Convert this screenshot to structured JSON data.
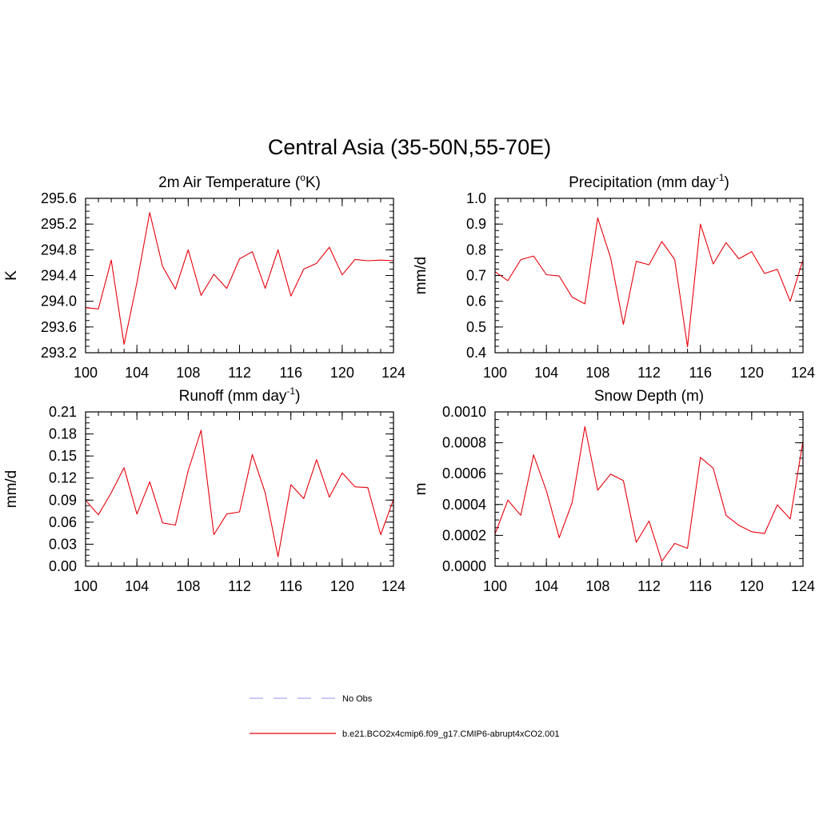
{
  "figure_title": "Central Asia (35-50N,55-70E)",
  "colors": {
    "model": "#e8000b",
    "obs": "#a9a9f0",
    "axis": "#000000"
  },
  "legend": {
    "obs_label": "No Obs",
    "model_label": "b.e21.BCO2x4cmip6.f09_g17.CMIP6-abrupt4xCO2.001"
  },
  "chart_data": [
    {
      "type": "line",
      "title": "2m Air Temperature (",
      "title_sup": "o",
      "title_after": "K)",
      "ylabel": "K",
      "xlim": [
        100,
        124
      ],
      "ylim": [
        293.2,
        295.6
      ],
      "xticks": [
        100,
        104,
        108,
        112,
        116,
        120,
        124
      ],
      "xtick_labels": [
        "100",
        "104",
        "108",
        "112",
        "116",
        "120",
        "124"
      ],
      "yticks": [
        293.2,
        293.6,
        294.0,
        294.4,
        294.8,
        295.2,
        295.6
      ],
      "ytick_labels": [
        "293.2",
        "293.6",
        "294.0",
        "294.4",
        "294.8",
        "295.2",
        "295.6"
      ],
      "x": [
        100,
        101,
        102,
        103,
        104,
        105,
        106,
        107,
        108,
        109,
        110,
        111,
        112,
        113,
        114,
        115,
        116,
        117,
        118,
        119,
        120,
        121,
        122,
        123,
        124
      ],
      "series": [
        {
          "values": [
            293.9,
            293.88,
            294.64,
            293.33,
            294.29,
            295.38,
            294.54,
            294.19,
            294.8,
            294.09,
            294.42,
            294.2,
            294.66,
            294.77,
            294.2,
            294.8,
            294.08,
            294.5,
            294.59,
            294.84,
            294.41,
            294.65,
            294.63,
            294.64,
            294.63
          ]
        }
      ]
    },
    {
      "type": "line",
      "title": "Precipitation (mm day",
      "title_sup": "-1",
      "title_after": ")",
      "ylabel": "mm/d",
      "xlim": [
        100,
        124
      ],
      "ylim": [
        0.4,
        1.0
      ],
      "xticks": [
        100,
        104,
        108,
        112,
        116,
        120,
        124
      ],
      "xtick_labels": [
        "100",
        "104",
        "108",
        "112",
        "116",
        "120",
        "124"
      ],
      "yticks": [
        0.4,
        0.5,
        0.6,
        0.7,
        0.8,
        0.9,
        1.0
      ],
      "ytick_labels": [
        "0.4",
        "0.5",
        "0.6",
        "0.7",
        "0.8",
        "0.9",
        "1.0"
      ],
      "x": [
        100,
        101,
        102,
        103,
        104,
        105,
        106,
        107,
        108,
        109,
        110,
        111,
        112,
        113,
        114,
        115,
        116,
        117,
        118,
        119,
        120,
        121,
        122,
        123,
        124
      ],
      "series": [
        {
          "values": [
            0.715,
            0.68,
            0.762,
            0.776,
            0.703,
            0.698,
            0.616,
            0.59,
            0.924,
            0.77,
            0.51,
            0.755,
            0.742,
            0.832,
            0.762,
            0.423,
            0.9,
            0.745,
            0.828,
            0.765,
            0.793,
            0.708,
            0.724,
            0.6,
            0.762
          ]
        }
      ]
    },
    {
      "type": "line",
      "title": "Runoff (mm day",
      "title_sup": "-1",
      "title_after": ")",
      "ylabel": "mm/d",
      "xlim": [
        100,
        124
      ],
      "ylim": [
        0.0,
        0.21
      ],
      "xticks": [
        100,
        104,
        108,
        112,
        116,
        120,
        124
      ],
      "xtick_labels": [
        "100",
        "104",
        "108",
        "112",
        "116",
        "120",
        "124"
      ],
      "yticks": [
        0.0,
        0.03,
        0.06,
        0.09,
        0.12,
        0.15,
        0.18,
        0.21
      ],
      "ytick_labels": [
        "0.00",
        "0.03",
        "0.06",
        "0.09",
        "0.12",
        "0.15",
        "0.18",
        "0.21"
      ],
      "x": [
        100,
        101,
        102,
        103,
        104,
        105,
        106,
        107,
        108,
        109,
        110,
        111,
        112,
        113,
        114,
        115,
        116,
        117,
        118,
        119,
        120,
        121,
        122,
        123,
        124
      ],
      "series": [
        {
          "values": [
            0.09,
            0.07,
            0.1,
            0.134,
            0.071,
            0.115,
            0.059,
            0.056,
            0.13,
            0.185,
            0.043,
            0.071,
            0.074,
            0.152,
            0.1,
            0.013,
            0.111,
            0.092,
            0.145,
            0.094,
            0.127,
            0.108,
            0.107,
            0.043,
            0.091
          ]
        }
      ]
    },
    {
      "type": "line",
      "title": "Snow Depth (m)",
      "title_sup": "",
      "title_after": "",
      "ylabel": "m",
      "xlim": [
        100,
        124
      ],
      "ylim": [
        0.0,
        0.001
      ],
      "xticks": [
        100,
        104,
        108,
        112,
        116,
        120,
        124
      ],
      "xtick_labels": [
        "100",
        "104",
        "108",
        "112",
        "116",
        "120",
        "124"
      ],
      "yticks": [
        0.0,
        0.0002,
        0.0004,
        0.0006,
        0.0008,
        0.001
      ],
      "ytick_labels": [
        "0.0000",
        "0.0002",
        "0.0004",
        "0.0006",
        "0.0008",
        "0.0010"
      ],
      "x": [
        100,
        101,
        102,
        103,
        104,
        105,
        106,
        107,
        108,
        109,
        110,
        111,
        112,
        113,
        114,
        115,
        116,
        117,
        118,
        119,
        120,
        121,
        122,
        123,
        124
      ],
      "series": [
        {
          "values": [
            0.00021,
            0.000428,
            0.00033,
            0.000722,
            0.000488,
            0.000185,
            0.000412,
            0.000905,
            0.000493,
            0.000597,
            0.000555,
            0.000155,
            0.000293,
            3.2e-05,
            0.000148,
            0.000116,
            0.000705,
            0.000635,
            0.00033,
            0.000265,
            0.000224,
            0.000212,
            0.000398,
            0.000306,
            0.000812
          ]
        }
      ]
    }
  ]
}
